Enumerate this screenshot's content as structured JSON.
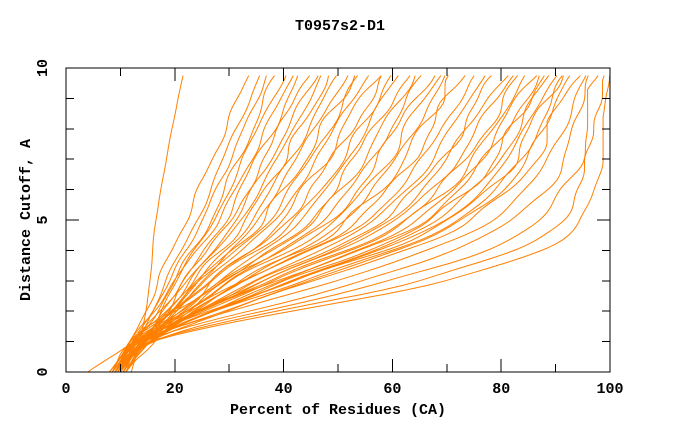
{
  "window": {
    "background": "#ffffff"
  },
  "chart_data": {
    "type": "line",
    "title": "T0957s2-D1",
    "xlabel": "Percent of Residues (CA)",
    "ylabel": "Distance Cutoff, A",
    "xlim": [
      0,
      100
    ],
    "ylim": [
      0,
      10
    ],
    "x_major_ticks": [
      0,
      20,
      40,
      60,
      80,
      100
    ],
    "x_minor_tick_step": 10,
    "y_major_ticks": [
      0,
      5,
      10
    ],
    "y_minor_tick_step": 1,
    "grid": false,
    "legend": "none",
    "line_color": "#ff8000",
    "axis_color": "#000000",
    "text_color": "#000000",
    "series_note": "CASP-style GDT plot: ~50 model curves; each curve gives percent of residues (x) fitting under distance cutoff (y). Anchors are x-values read at cutoffs anchor_y = [0,1,3,5,9.75] A.",
    "anchor_y": [
      0,
      1,
      3,
      5,
      9.75
    ],
    "curves": [
      [
        12,
        13.5,
        15.5,
        16.5,
        21.5
      ],
      [
        9,
        12,
        17,
        22,
        33.5
      ],
      [
        10,
        13,
        18.5,
        24,
        35.5
      ],
      [
        8.5,
        12.5,
        19,
        25,
        37
      ],
      [
        9.5,
        13,
        20,
        26.5,
        38.5
      ],
      [
        10,
        14,
        20.5,
        27,
        40
      ],
      [
        8,
        12,
        20,
        28,
        41.5
      ],
      [
        11,
        14.5,
        22,
        29,
        43
      ],
      [
        9,
        13.5,
        22,
        30,
        44.5
      ],
      [
        10.5,
        14,
        23,
        31,
        46
      ],
      [
        8.5,
        12,
        22.5,
        32,
        47
      ],
      [
        9.5,
        13,
        23.5,
        33,
        48.5
      ],
      [
        10,
        14.5,
        24.5,
        34,
        50
      ],
      [
        11,
        15,
        25.5,
        35,
        51.5
      ],
      [
        8,
        12.5,
        24.5,
        36,
        53
      ],
      [
        9,
        13,
        25,
        37,
        54
      ],
      [
        10,
        14,
        26,
        38,
        55.5
      ],
      [
        10.5,
        15,
        27.5,
        39.5,
        57
      ],
      [
        9,
        13.5,
        27,
        40.5,
        58.5
      ],
      [
        8.5,
        12.5,
        27,
        42,
        60
      ],
      [
        10,
        14,
        28.5,
        43,
        61
      ],
      [
        11,
        15.5,
        30,
        44.5,
        62.5
      ],
      [
        9.5,
        13,
        29,
        45.5,
        64
      ],
      [
        10,
        14.5,
        30.5,
        47,
        65.5
      ],
      [
        8.5,
        12.5,
        30,
        48,
        67
      ],
      [
        9,
        13.5,
        31,
        49.5,
        68.5
      ],
      [
        10.5,
        15,
        33,
        51,
        70
      ],
      [
        9.5,
        13.5,
        32.5,
        52,
        71.5
      ],
      [
        10,
        14,
        33.5,
        53.5,
        73
      ],
      [
        4,
        12,
        33,
        55,
        75
      ],
      [
        9.5,
        14,
        35,
        56.5,
        77
      ],
      [
        10,
        14.5,
        36,
        58,
        79
      ],
      [
        11,
        15,
        37,
        59,
        80.5
      ],
      [
        9,
        13,
        36.5,
        60.5,
        82
      ],
      [
        10,
        14,
        38,
        62,
        83.5
      ],
      [
        9.5,
        13.5,
        38.5,
        63,
        85
      ],
      [
        10.5,
        15,
        40,
        64.5,
        86
      ],
      [
        9,
        13,
        39.5,
        65.5,
        87
      ],
      [
        10,
        14,
        41,
        67,
        88
      ],
      [
        9.5,
        14.5,
        42,
        68,
        89
      ],
      [
        10,
        13.5,
        42,
        69.5,
        90
      ],
      [
        8.5,
        13,
        42.5,
        70.5,
        91
      ],
      [
        9.5,
        14,
        44,
        72,
        92
      ],
      [
        10,
        14.5,
        45,
        73,
        93
      ],
      [
        10.5,
        15,
        46,
        74.5,
        94
      ],
      [
        9,
        13.5,
        50,
        78,
        95.5
      ],
      [
        9.5,
        14,
        55,
        82,
        96.5
      ],
      [
        10,
        15,
        60,
        87,
        97.5
      ],
      [
        11,
        16,
        65,
        91,
        98.5
      ],
      [
        10.5,
        15.5,
        70,
        95,
        99.5
      ]
    ]
  }
}
